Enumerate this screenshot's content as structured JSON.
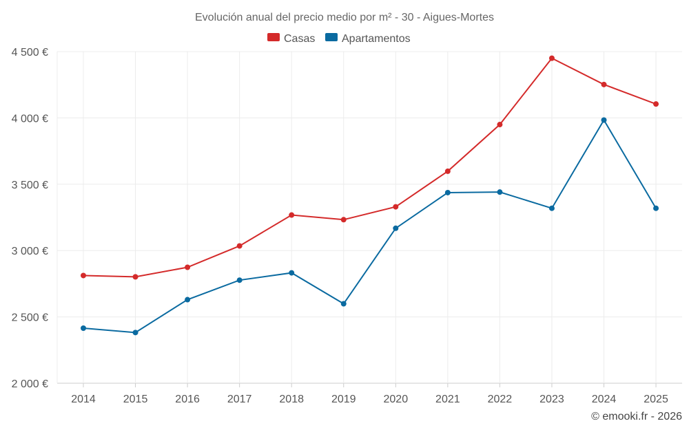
{
  "chart_data": {
    "type": "line",
    "title": "Evolución anual del precio medio por m² - 30 - Aigues-Mortes",
    "categories": [
      "2014",
      "2015",
      "2016",
      "2017",
      "2018",
      "2019",
      "2020",
      "2021",
      "2022",
      "2023",
      "2024",
      "2025"
    ],
    "series": [
      {
        "name": "Casas",
        "color": "#d42a2a",
        "values": [
          2812,
          2802,
          2874,
          3035,
          3268,
          3233,
          3330,
          3598,
          3950,
          4450,
          4252,
          4105
        ]
      },
      {
        "name": "Apartamentos",
        "color": "#0a6aa0",
        "values": [
          2415,
          2382,
          2630,
          2777,
          2832,
          2599,
          3168,
          3437,
          3441,
          3319,
          3984,
          3319
        ]
      }
    ],
    "yticks": [
      2000,
      2500,
      3000,
      3500,
      4000,
      4500
    ],
    "ytick_labels": [
      "2 000 €",
      "2 500 €",
      "3 000 €",
      "3 500 €",
      "4 000 €",
      "4 500 €"
    ],
    "ylim": [
      2000,
      4500
    ],
    "xlabel": "",
    "ylabel": "",
    "grid": true,
    "legend_position": "top-center"
  },
  "credit": "© emooki.fr - 2026"
}
